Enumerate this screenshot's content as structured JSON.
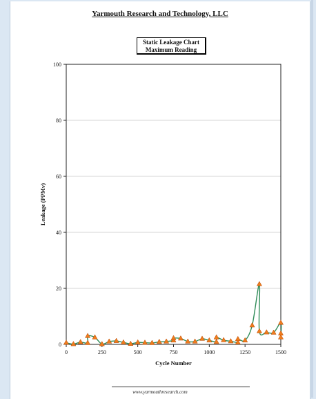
{
  "header": {
    "company": "Yarmouth Research and Technology, LLC",
    "chart_title_line1": "Static Leakage Chart",
    "chart_title_line2": "Maximum Reading"
  },
  "footer": {
    "url": "www.yarmouthresearch.com"
  },
  "colors": {
    "line": "#2e8b57",
    "marker_fill": "#f07c1e",
    "marker_edge": "#b34700",
    "gridline": "#c8c8c8",
    "background": "#dbe7f3"
  },
  "chart_data": {
    "type": "line",
    "title": "Static Leakage Chart Maximum Reading",
    "xlabel": "Cycle Number",
    "ylabel": "Leakage (PPMv)",
    "xlim": [
      0,
      1500
    ],
    "ylim": [
      0,
      100
    ],
    "xticks": [
      0,
      250,
      500,
      750,
      1000,
      1250,
      1500
    ],
    "yticks": [
      0,
      20,
      40,
      60,
      80,
      100
    ],
    "grid": true,
    "legend": "none",
    "marker": "triangle",
    "series": [
      {
        "x": [
          0,
          50,
          100,
          150,
          150,
          200,
          250,
          300,
          350,
          400,
          450,
          500,
          550,
          600,
          650,
          700,
          750,
          750,
          800,
          850,
          900,
          950,
          1000,
          1050,
          1050,
          1100,
          1150,
          1200,
          1200,
          1250,
          1300,
          1350,
          1350,
          1400,
          1450,
          1500,
          1500,
          1500
        ],
        "y": [
          0.6,
          0.1,
          0.8,
          0.5,
          3.0,
          2.5,
          0.1,
          1.0,
          1.2,
          0.7,
          0.2,
          0.7,
          0.6,
          0.5,
          0.9,
          1.0,
          1.4,
          2.2,
          2.1,
          1.0,
          1.0,
          2.0,
          1.4,
          0.9,
          2.5,
          1.5,
          1.1,
          0.7,
          1.9,
          1.4,
          6.8,
          21.5,
          4.7,
          4.3,
          4.2,
          7.7,
          2.5,
          3.9
        ]
      }
    ]
  }
}
